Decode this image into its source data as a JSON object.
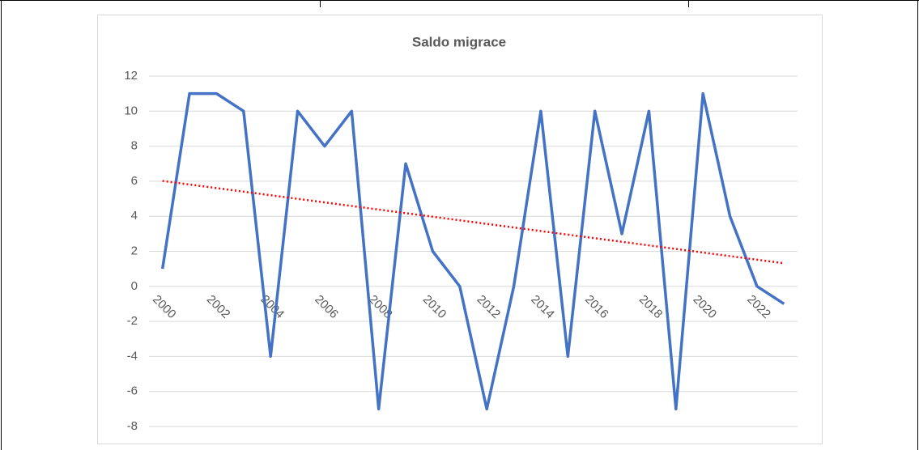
{
  "chart_data": {
    "type": "line",
    "title": "Saldo migrace",
    "categories": [
      "2000",
      null,
      "2002",
      null,
      "2004",
      null,
      "2006",
      null,
      "2008",
      null,
      "2010",
      null,
      "2012",
      null,
      "2014",
      null,
      "2016",
      null,
      "2018",
      null,
      "2020",
      null,
      "2022",
      null
    ],
    "series": [
      {
        "color": "#4472c4",
        "values": [
          1,
          11,
          11,
          10,
          -4,
          10,
          8,
          10,
          -7,
          7,
          2,
          0,
          -7,
          0,
          10,
          -4,
          10,
          3,
          10,
          -7,
          11,
          4,
          0,
          -1
        ]
      }
    ],
    "trendline": "linear",
    "trendline_color": "#ff0000",
    "ylim": [
      -8,
      12
    ],
    "yticks": [
      -8,
      -6,
      -4,
      -2,
      0,
      2,
      4,
      6,
      8,
      10,
      12
    ],
    "grid": true
  }
}
